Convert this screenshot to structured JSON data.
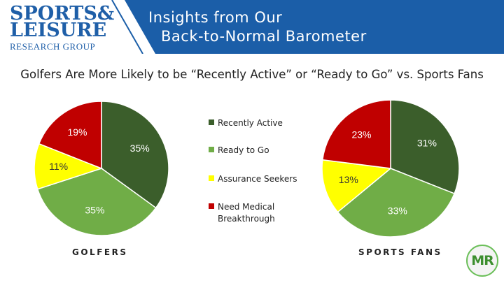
{
  "header": {
    "logo_line1": "SPORTS&",
    "logo_line2": "LEISURE",
    "logo_line3": "RESEARCH GROUP",
    "title_line1": "Insights from Our",
    "title_line2": "Back-to-Normal Barometer",
    "band_color": "#1b5ea8"
  },
  "badge": {
    "text": "MR"
  },
  "legend": [
    {
      "label": "Recently Active",
      "color": "#3b5e2b"
    },
    {
      "label": "Ready to Go",
      "color": "#70ad47"
    },
    {
      "label": "Assurance Seekers",
      "color": "#ffff00"
    },
    {
      "label": "Need Medical Breakthrough",
      "color": "#c00000"
    }
  ],
  "chart_data": {
    "type": "pie",
    "title": "Golfers Are More Likely to be “Recently Active” or “Ready to Go” vs. Sports Fans",
    "categories": [
      "Recently Active",
      "Ready to Go",
      "Assurance Seekers",
      "Need Medical Breakthrough"
    ],
    "colors": [
      "#3b5e2b",
      "#70ad47",
      "#ffff00",
      "#c00000"
    ],
    "legend_placement": "center",
    "charts": [
      {
        "name": "GOLFERS",
        "values": [
          35,
          35,
          11,
          19
        ],
        "labels": [
          "35%",
          "35%",
          "11%",
          "19%"
        ]
      },
      {
        "name": "SPORTS FANS",
        "values": [
          31,
          33,
          13,
          23
        ],
        "labels": [
          "31%",
          "33%",
          "13%",
          "23%"
        ]
      }
    ]
  }
}
